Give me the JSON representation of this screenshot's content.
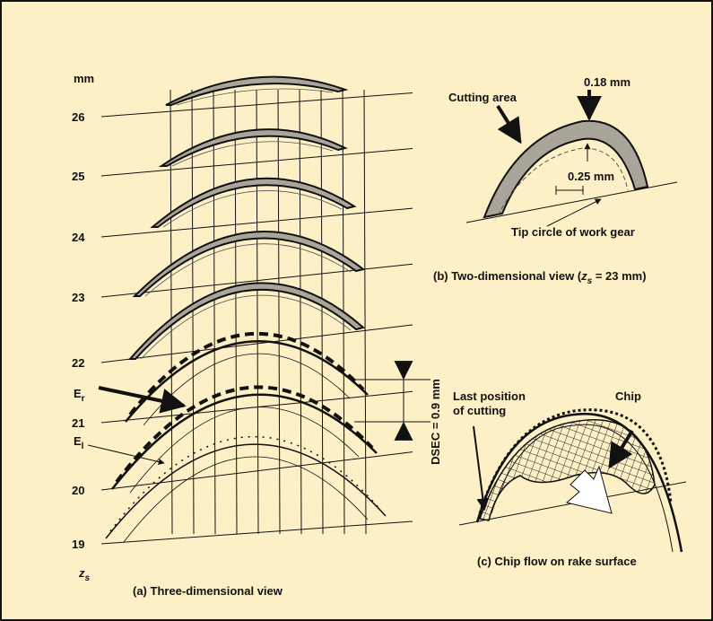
{
  "panel_a": {
    "unit": "mm",
    "levels": [
      "26",
      "25",
      "24",
      "23",
      "22",
      "21",
      "20",
      "19"
    ],
    "axis": {
      "main": "z",
      "sub": "s"
    },
    "er": {
      "main": "E",
      "sub": "r"
    },
    "el": {
      "main": "E",
      "sub": "l"
    },
    "dsec": "DSEC = 0.9 mm",
    "caption": "(a) Three-dimensional view"
  },
  "panel_b": {
    "thickness": "0.18 mm",
    "cutting_area": "Cutting area",
    "spacing": "0.25 mm",
    "tip_circle": "Tip circle of work gear",
    "caption": {
      "before": "(b) Two-dimensional view (",
      "main": "z",
      "sub": "s",
      "after": " = 23 mm)"
    }
  },
  "panel_c": {
    "last_position": [
      "Last position",
      "of cutting"
    ],
    "chip": "Chip",
    "caption": "(c) Chip flow on rake surface"
  }
}
